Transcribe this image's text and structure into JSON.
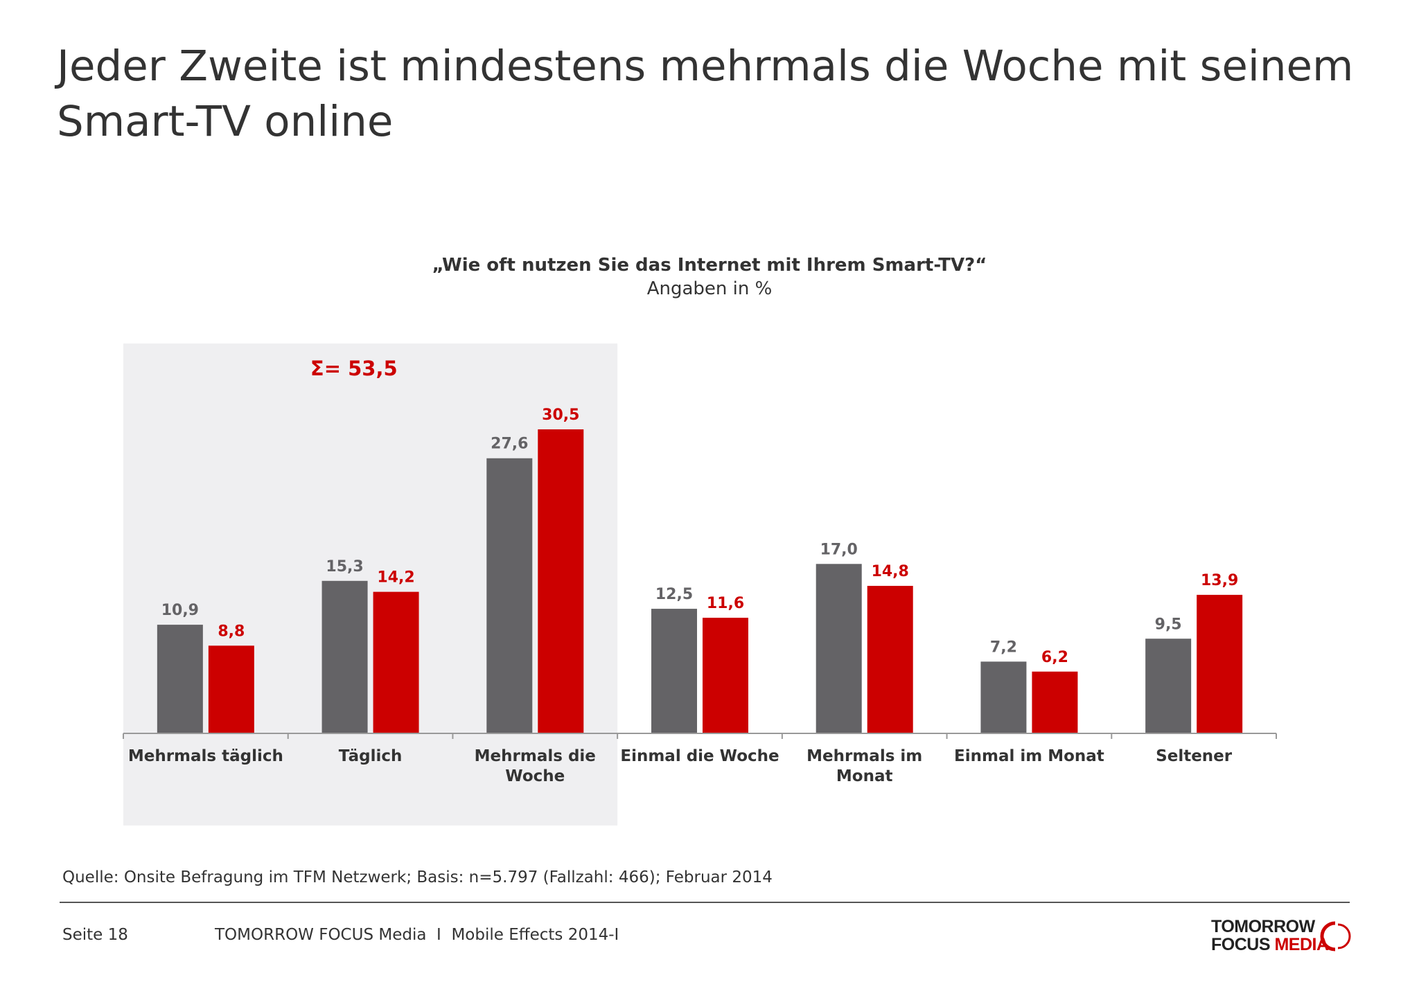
{
  "slide": {
    "title": "Jeder Zweite ist mindestens mehrmals die Woche mit seinem Smart-TV online",
    "question": "„Wie oft nutzen Sie das Internet mit Ihrem Smart-TV?“",
    "unit_note": "Angaben in %",
    "highlight_label": "Σ= 53,5",
    "source": "Quelle: Onsite Befragung im TFM Netzwerk; Basis: n=5.797 (Fallzahl: 466); Februar 2014",
    "page": "Seite 18",
    "footer": "TOMORROW FOCUS Media  I  Mobile Effects 2014-I",
    "logo_line1": "TOMORROW",
    "logo_line2a": "FOCUS ",
    "logo_line2b": "MEDIA"
  },
  "colors": {
    "series1": "#646366",
    "series2": "#cc0000",
    "highlight_bg": "#efeff1",
    "axis": "#999999"
  },
  "chart_data": {
    "type": "bar",
    "categories": [
      [
        "Mehrmals täglich"
      ],
      [
        "Täglich"
      ],
      [
        "Mehrmals die",
        "Woche"
      ],
      [
        "Einmal die Woche"
      ],
      [
        "Mehrmals im",
        "Monat"
      ],
      [
        "Einmal im Monat"
      ],
      [
        "Seltener"
      ]
    ],
    "series": [
      {
        "values": [
          10.9,
          15.3,
          27.6,
          12.5,
          17.0,
          7.2,
          9.5
        ],
        "labels": [
          "10,9",
          "15,3",
          "27,6",
          "12,5",
          "17,0",
          "7,2",
          "9,5"
        ]
      },
      {
        "values": [
          8.8,
          14.2,
          30.5,
          11.6,
          14.8,
          6.2,
          13.9
        ],
        "labels": [
          "8,8",
          "14,2",
          "30,5",
          "11,6",
          "14,8",
          "6,2",
          "13,9"
        ]
      }
    ],
    "highlighted_categories": [
      0,
      1,
      2
    ],
    "title": "„Wie oft nutzen Sie das Internet mit Ihrem Smart-TV?“",
    "xlabel": "",
    "ylabel": "",
    "ylim": [
      0,
      35
    ],
    "grid": false,
    "legend": "none"
  }
}
